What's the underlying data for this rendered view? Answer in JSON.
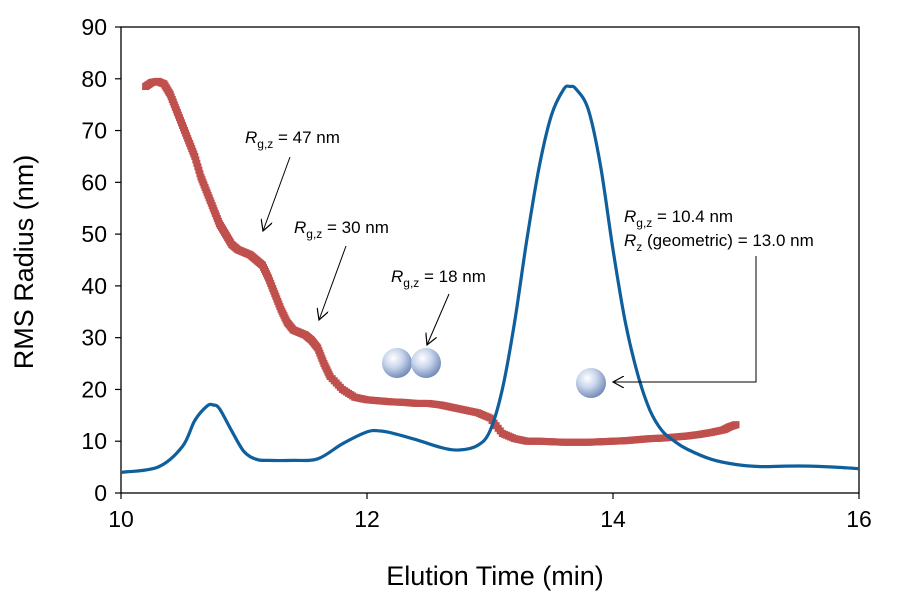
{
  "chart_data": {
    "type": "line",
    "title": "",
    "xlabel": "Elution Time (min)",
    "ylabel": "RMS Radius (nm)",
    "xlim": [
      10,
      16
    ],
    "ylim": [
      0,
      90
    ],
    "xticks": [
      10,
      12,
      14,
      16
    ],
    "yticks": [
      0,
      10,
      20,
      30,
      40,
      50,
      60,
      70,
      80,
      90
    ],
    "grid": false,
    "legend": "none",
    "series": [
      {
        "kind": "signal-trace",
        "color": "#0e5f9c",
        "x": [
          10.0,
          10.3,
          10.5,
          10.6,
          10.7,
          10.75,
          10.8,
          10.9,
          11.0,
          11.1,
          11.2,
          11.4,
          11.6,
          11.8,
          12.0,
          12.1,
          12.2,
          12.4,
          12.6,
          12.75,
          12.9,
          13.0,
          13.1,
          13.2,
          13.3,
          13.4,
          13.5,
          13.6,
          13.65,
          13.7,
          13.8,
          13.9,
          14.0,
          14.1,
          14.2,
          14.3,
          14.4,
          14.5,
          14.6,
          14.8,
          15.0,
          15.2,
          15.4,
          15.6,
          15.8,
          16.0
        ],
        "y": [
          4,
          5,
          9,
          14,
          16.8,
          17,
          16.3,
          12,
          8,
          6.5,
          6.3,
          6.3,
          6.6,
          9.5,
          11.8,
          12,
          11.6,
          10.3,
          8.8,
          8.3,
          9.2,
          12,
          20,
          33,
          49,
          63,
          73,
          78,
          78.5,
          78,
          74,
          63,
          47,
          33,
          23,
          16,
          12,
          10,
          8.5,
          6.5,
          5.5,
          5.1,
          5.2,
          5.2,
          5.0,
          4.7
        ]
      },
      {
        "kind": "rms-radius-points",
        "color": "#c0504d",
        "x": [
          10.2,
          10.25,
          10.3,
          10.35,
          10.4,
          10.45,
          10.5,
          10.55,
          10.6,
          10.65,
          10.7,
          10.75,
          10.8,
          10.85,
          10.9,
          10.95,
          11.0,
          11.05,
          11.1,
          11.15,
          11.2,
          11.25,
          11.3,
          11.35,
          11.4,
          11.45,
          11.5,
          11.55,
          11.6,
          11.65,
          11.7,
          11.8,
          11.9,
          12.0,
          12.1,
          12.2,
          12.3,
          12.4,
          12.5,
          12.6,
          12.7,
          12.8,
          12.9,
          13.0,
          13.1,
          13.2,
          13.3,
          13.4,
          13.5,
          13.6,
          13.7,
          13.8,
          13.9,
          14.0,
          14.1,
          14.2,
          14.3,
          14.4,
          14.5,
          14.6,
          14.7,
          14.8,
          14.9,
          14.95,
          15.0
        ],
        "y": [
          78.5,
          79.3,
          79.5,
          79.0,
          77,
          74,
          71,
          68,
          65,
          61,
          58,
          55,
          52,
          50,
          48,
          47,
          46.5,
          46,
          45,
          44,
          41.5,
          38.5,
          35.5,
          33,
          31.5,
          31,
          30.5,
          29.5,
          28,
          25,
          22.5,
          20,
          18.5,
          18,
          17.8,
          17.6,
          17.5,
          17.3,
          17.3,
          17.0,
          16.5,
          16.0,
          15.5,
          14.5,
          11.5,
          10.5,
          10.0,
          10.0,
          9.9,
          9.8,
          9.8,
          9.8,
          9.9,
          10.0,
          10.1,
          10.3,
          10.5,
          10.6,
          10.8,
          11.0,
          11.3,
          11.7,
          12.2,
          12.8,
          13.2
        ]
      }
    ],
    "annotations": [
      {
        "main": "R",
        "sub": "g,z",
        "rest": " = 47 nm"
      },
      {
        "main": "R",
        "sub": "g,z",
        "rest": " = 30 nm"
      },
      {
        "main": "R",
        "sub": "g,z",
        "rest": " = 18 nm"
      },
      {
        "main": "R",
        "sub": "g,z",
        "rest": " = 10.4 nm"
      },
      {
        "main": "R",
        "sub": "z",
        "rest": " (geometric) = 13.0 nm"
      }
    ]
  }
}
